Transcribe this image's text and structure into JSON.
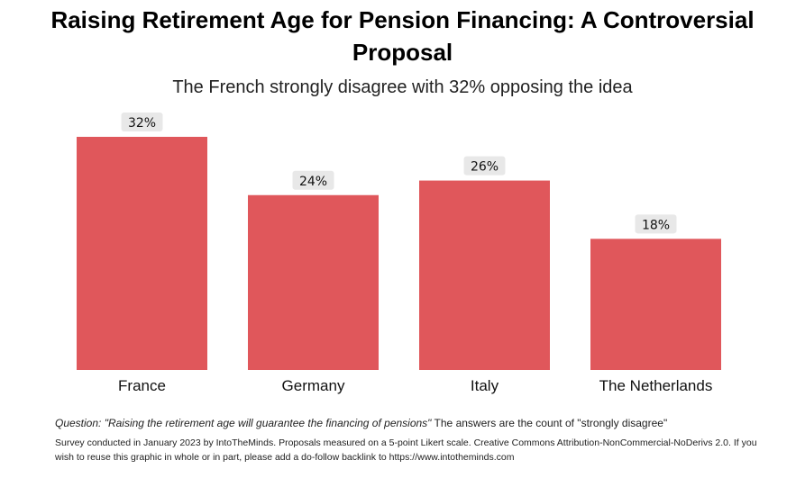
{
  "chart_data": {
    "type": "bar",
    "title": "Raising Retirement Age for Pension Financing: A Controversial Proposal",
    "subtitle": "The French strongly disagree with 32% opposing the idea",
    "categories": [
      "France",
      "Germany",
      "Italy",
      "The Netherlands"
    ],
    "values": [
      32,
      24,
      26,
      18
    ],
    "data_labels": [
      "32%",
      "24%",
      "26%",
      "18%"
    ],
    "xlabel": "",
    "ylabel": "",
    "ylim": [
      0,
      32
    ],
    "grid": false,
    "legend": "none",
    "bar_color": "#e0575b",
    "label_bg_color": "#e8e8e8"
  },
  "footer": {
    "question_prefix": "Question: \"Raising the retirement age will guarantee the financing of pensions\"",
    "question_suffix": " The answers are the count of \"strongly disagree\"",
    "note": "Survey conducted in January 2023 by IntoTheMinds. Proposals measured on a 5-point Likert scale. Creative Commons Attribution-NonCommercial-NoDerivs 2.0. If you wish to reuse this graphic in whole or in part, please add a do-follow backlink to https://www.intotheminds.com"
  }
}
